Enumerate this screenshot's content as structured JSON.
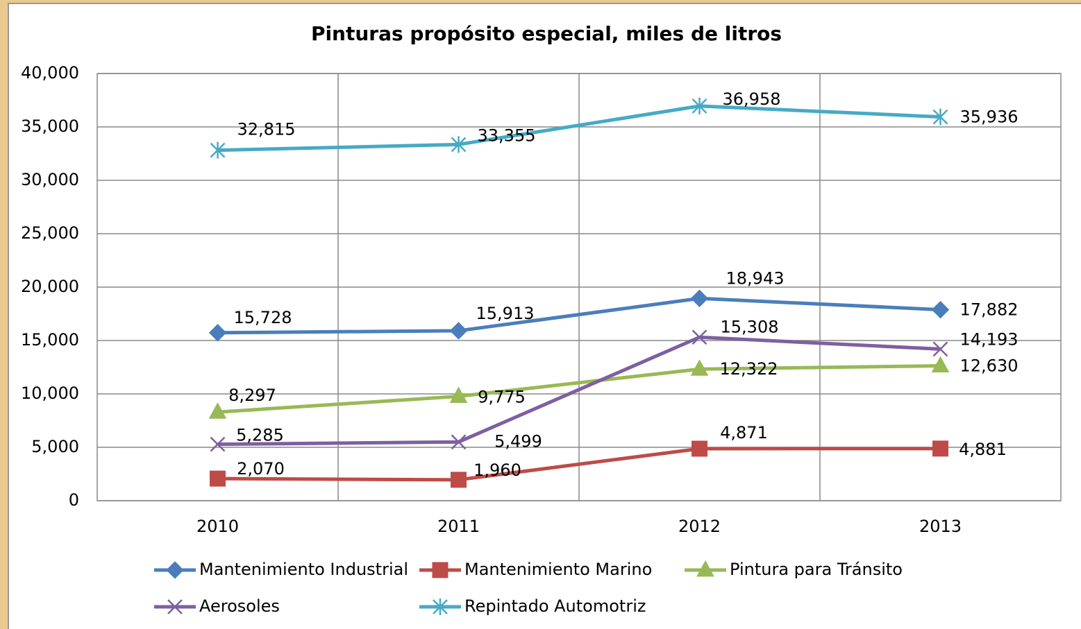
{
  "chart_data": {
    "type": "line",
    "title": "Pinturas propósito especial, miles de litros",
    "categories": [
      "2010",
      "2011",
      "2012",
      "2013"
    ],
    "series": [
      {
        "name": "Mantenimiento Industrial",
        "color": "#4a7ebb",
        "marker": "diamond",
        "values": [
          15728,
          15913,
          18943,
          17882
        ],
        "value_labels": [
          "15,728",
          "15,913",
          "18,943",
          "17,882"
        ]
      },
      {
        "name": "Mantenimiento Marino",
        "color": "#be4b48",
        "marker": "square",
        "values": [
          2070,
          1960,
          4871,
          4881
        ],
        "value_labels": [
          "2,070",
          "1,960",
          "4,871",
          "4,881"
        ]
      },
      {
        "name": "Pintura para Tránsito",
        "color": "#98b954",
        "marker": "triangle",
        "values": [
          8297,
          9775,
          12322,
          12630
        ],
        "value_labels": [
          "8,297",
          "9,775",
          "12,322",
          "12,630"
        ]
      },
      {
        "name": "Aerosoles",
        "color": "#7d60a0",
        "marker": "x",
        "values": [
          5285,
          5499,
          15308,
          14193
        ],
        "value_labels": [
          "5,285",
          "5,499",
          "15,308",
          "14,193"
        ]
      },
      {
        "name": "Repintado Automotriz",
        "color": "#46aac5",
        "marker": "asterisk",
        "values": [
          32815,
          33355,
          36958,
          35936
        ],
        "value_labels": [
          "32,815",
          "33,355",
          "36,958",
          "35,936"
        ]
      }
    ],
    "ylim": [
      0,
      40000
    ],
    "yticks": [
      0,
      {
        "value": 5000,
        "label": "5,000"
      },
      {
        "value": 10000,
        "label": "10,000"
      },
      {
        "value": 15000,
        "label": "15,000"
      },
      {
        "value": 20000,
        "label": "20,000"
      },
      {
        "value": 25000,
        "label": "25,000"
      },
      {
        "value": 30000,
        "label": "30,000"
      },
      {
        "value": 35000,
        "label": "35,000"
      },
      {
        "value": 40000,
        "label": "40,000"
      }
    ],
    "grid": true,
    "legend": "bottom"
  }
}
